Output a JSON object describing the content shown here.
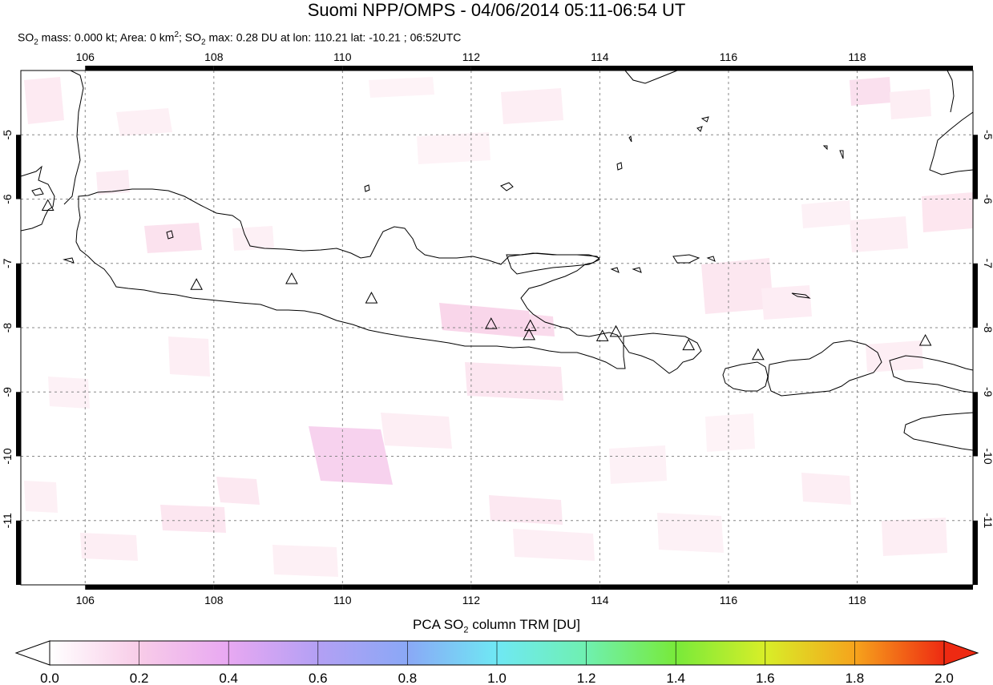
{
  "title": "Suomi NPP/OMPS - 04/06/2014 05:11-06:54 UT",
  "subtitle": {
    "mass_label": "SO",
    "mass_sub": "2",
    "mass_text": " mass: 0.000 kt; Area: 0 km",
    "area_sup": "2",
    "max_label": "; SO",
    "max_sub": "2",
    "max_text": " max: 0.28 DU at lon: 110.21 lat: -10.21 ; 06:52UTC"
  },
  "map": {
    "lon_range": [
      105.0,
      119.8
    ],
    "lat_range": [
      -12.0,
      -4.0
    ],
    "lon_ticks": [
      "106",
      "108",
      "110",
      "112",
      "114",
      "116",
      "118"
    ],
    "lon_tick_values": [
      106,
      108,
      110,
      112,
      114,
      116,
      118
    ],
    "lat_ticks": [
      "-5",
      "-6",
      "-7",
      "-8",
      "-9",
      "-10",
      "-11"
    ],
    "lat_tick_values": [
      -5,
      -6,
      -7,
      -8,
      -9,
      -10,
      -11
    ],
    "grid": true,
    "volcano_icon": "triangle-icon",
    "volcanoes": [
      {
        "lon": 105.42,
        "lat": -6.1
      },
      {
        "lon": 107.73,
        "lat": -7.33
      },
      {
        "lon": 109.21,
        "lat": -7.24
      },
      {
        "lon": 110.45,
        "lat": -7.54
      },
      {
        "lon": 112.31,
        "lat": -7.94
      },
      {
        "lon": 112.92,
        "lat": -7.97
      },
      {
        "lon": 112.9,
        "lat": -8.11
      },
      {
        "lon": 114.04,
        "lat": -8.13
      },
      {
        "lon": 114.25,
        "lat": -8.06
      },
      {
        "lon": 115.38,
        "lat": -8.27
      },
      {
        "lon": 116.46,
        "lat": -8.42
      },
      {
        "lon": 119.06,
        "lat": -8.2
      }
    ],
    "colors": {
      "coast": "#000000",
      "grid": "#888888",
      "so2_low": "#fbe3ef",
      "so2_mid": "#f6c8ea"
    }
  },
  "colorbar": {
    "label_prefix": "PCA SO",
    "label_sub": "2",
    "label_suffix": " column TRM [DU]",
    "ticks": [
      "0.0",
      "0.2",
      "0.4",
      "0.6",
      "0.8",
      "1.0",
      "1.2",
      "1.4",
      "1.6",
      "1.8",
      "2.0"
    ],
    "range": [
      0.0,
      2.0
    ],
    "colors": [
      "#ffffff",
      "#f8cce8",
      "#e8a8f2",
      "#b3a0f4",
      "#8aa8f6",
      "#6fe8f4",
      "#6ff0b0",
      "#78ea3a",
      "#d8ee28",
      "#f6a41c",
      "#ee2a12"
    ]
  }
}
